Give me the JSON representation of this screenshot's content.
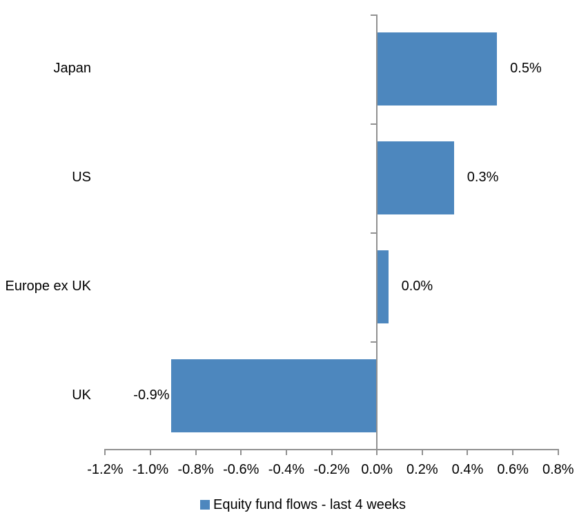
{
  "chart_data": {
    "type": "bar",
    "orientation": "horizontal",
    "title": "",
    "categories": [
      "Japan",
      "US",
      "Europe ex UK",
      "UK"
    ],
    "series": [
      {
        "name": "Equity fund flows - last 4 weeks",
        "values": [
          0.53,
          0.34,
          0.05,
          -0.91
        ],
        "value_labels": [
          "0.5%",
          "0.3%",
          "0.0%",
          "-0.9%"
        ]
      }
    ],
    "xlabel": "",
    "ylabel": "",
    "xlim": [
      -1.2,
      0.8
    ],
    "xtick_values": [
      -1.2,
      -1.0,
      -0.8,
      -0.6,
      -0.4,
      -0.2,
      0.0,
      0.2,
      0.4,
      0.6,
      0.8
    ],
    "xtick_labels": [
      "-1.2%",
      "-1.0%",
      "-0.8%",
      "-0.6%",
      "-0.4%",
      "-0.2%",
      "0.0%",
      "0.2%",
      "0.4%",
      "0.6%",
      "0.8%"
    ],
    "grid": false,
    "legend_position": "bottom",
    "colors": {
      "bar": "#4D87BE",
      "axis": "#919191",
      "text": "#000000",
      "background": "#FFFFFF"
    }
  },
  "legend": {
    "label": "Equity fund flows - last 4 weeks"
  }
}
